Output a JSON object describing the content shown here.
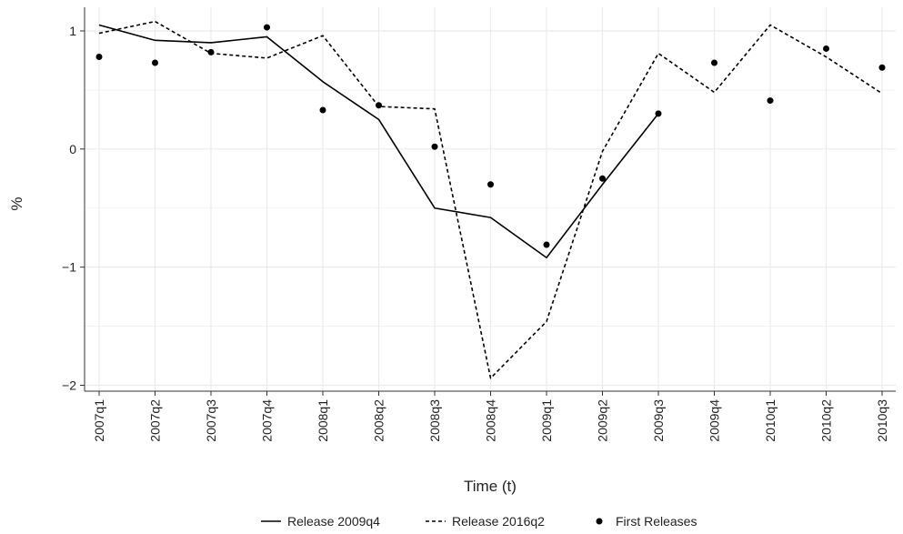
{
  "chart_data": {
    "type": "line",
    "title": "",
    "xlabel": "Time (t)",
    "ylabel": "%",
    "categories": [
      "2007q1",
      "2007q2",
      "2007q3",
      "2007q4",
      "2008q1",
      "2008q2",
      "2008q3",
      "2008q4",
      "2009q1",
      "2009q2",
      "2009q3",
      "2009q4",
      "2010q1",
      "2010q2",
      "2010q3"
    ],
    "y_ticks": [
      {
        "value": 1,
        "label": "1"
      },
      {
        "value": 0,
        "label": "0"
      },
      {
        "value": -1,
        "label": "−1"
      },
      {
        "value": -2,
        "label": "−2"
      }
    ],
    "ylim": [
      -2.05,
      1.2
    ],
    "grid": true,
    "legend_position": "bottom",
    "series": [
      {
        "name": "Release 2009q4",
        "style": "solid",
        "kind": "line",
        "values": [
          1.05,
          0.92,
          0.9,
          0.95,
          0.57,
          0.25,
          -0.5,
          -0.58,
          -0.92,
          -0.3,
          0.3,
          null,
          null,
          null,
          null
        ]
      },
      {
        "name": "Release 2016q2",
        "style": "dashed",
        "kind": "line",
        "values": [
          0.98,
          1.08,
          0.81,
          0.77,
          0.96,
          0.36,
          0.34,
          -1.94,
          -1.46,
          -0.02,
          0.81,
          0.48,
          1.05,
          0.78,
          0.47
        ]
      },
      {
        "name": "First Releases",
        "style": "points",
        "kind": "scatter",
        "values": [
          0.78,
          0.73,
          0.82,
          1.03,
          0.33,
          0.37,
          0.02,
          -0.3,
          -0.81,
          -0.25,
          0.3,
          0.73,
          0.41,
          0.85,
          0.69
        ]
      }
    ],
    "colors": {
      "line": "#000000",
      "grid": "#ebebeb"
    }
  }
}
